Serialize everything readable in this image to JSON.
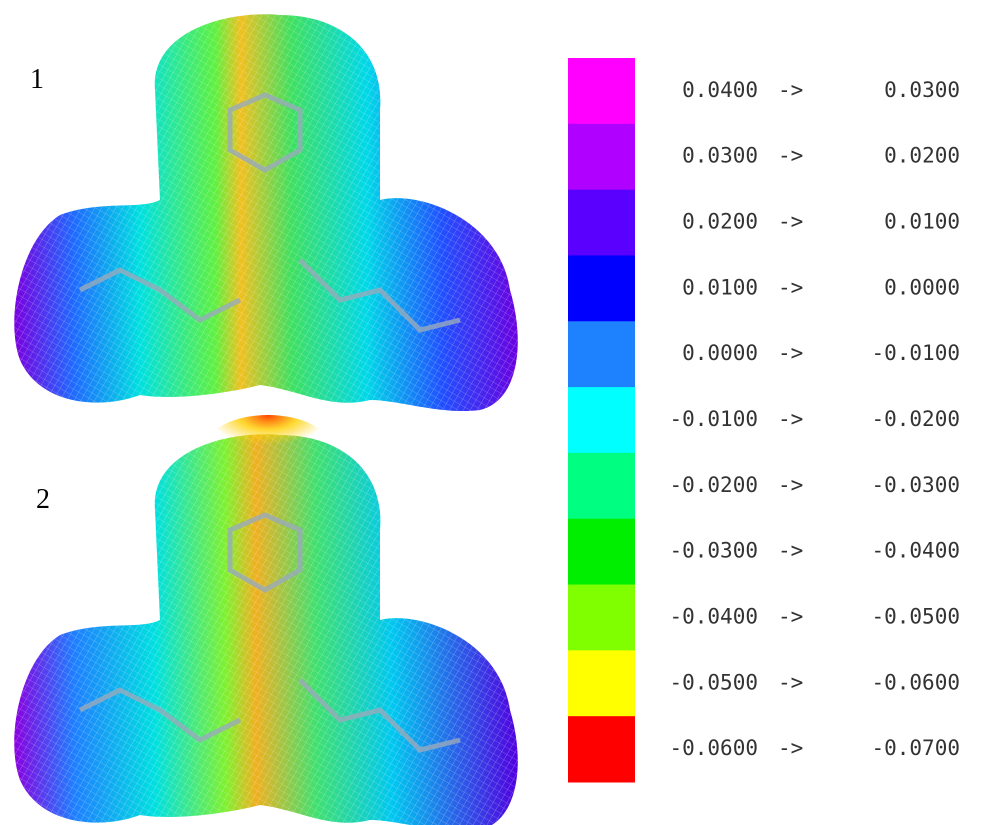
{
  "panels": [
    {
      "label": "1"
    },
    {
      "label": "2"
    }
  ],
  "legend": {
    "rows": [
      {
        "color": "#ff00ff",
        "from": "0.0400",
        "arrow": "->",
        "to": "0.0300"
      },
      {
        "color": "#b000ff",
        "from": "0.0300",
        "arrow": "->",
        "to": "0.0200"
      },
      {
        "color": "#5a00ff",
        "from": "0.0200",
        "arrow": "->",
        "to": "0.0100"
      },
      {
        "color": "#0000ff",
        "from": "0.0100",
        "arrow": "->",
        "to": "0.0000"
      },
      {
        "color": "#1e82ff",
        "from": "0.0000",
        "arrow": "->",
        "to": "-0.0100"
      },
      {
        "color": "#00ffff",
        "from": "-0.0100",
        "arrow": "->",
        "to": "-0.0200"
      },
      {
        "color": "#00ff80",
        "from": "-0.0200",
        "arrow": "->",
        "to": "-0.0300"
      },
      {
        "color": "#00ee00",
        "from": "-0.0300",
        "arrow": "->",
        "to": "-0.0400"
      },
      {
        "color": "#80ff00",
        "from": "-0.0400",
        "arrow": "->",
        "to": "-0.0500"
      },
      {
        "color": "#ffff00",
        "from": "-0.0500",
        "arrow": "->",
        "to": "-0.0600"
      },
      {
        "color": "#ff0000",
        "from": "-0.0600",
        "arrow": "->",
        "to": "-0.0700"
      }
    ]
  }
}
